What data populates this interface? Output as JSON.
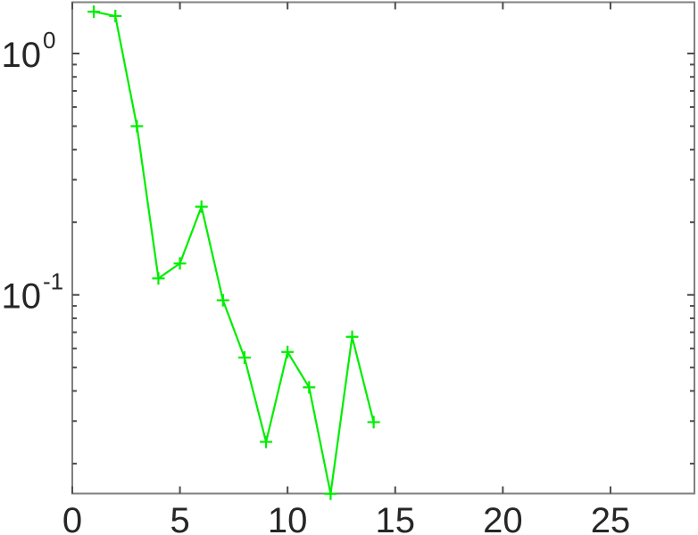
{
  "chart_data": {
    "type": "line",
    "title": "",
    "xlabel": "",
    "ylabel": "",
    "yscale": "log",
    "grid": false,
    "legend": null,
    "x": [
      1,
      2,
      3,
      4,
      5,
      6,
      7,
      8,
      9,
      10,
      11,
      12,
      13,
      14
    ],
    "y": [
      1.49,
      1.43,
      0.5,
      0.117,
      0.135,
      0.232,
      0.095,
      0.055,
      0.0246,
      0.058,
      0.0414,
      0.015,
      0.067,
      0.0297
    ],
    "line_color": "#00ee00",
    "marker": "+",
    "marker_size": 14,
    "xlim": [
      0,
      28.9
    ],
    "ylim": [
      0.01503,
      1.631
    ],
    "xticks": [
      0,
      5,
      10,
      15,
      20,
      25
    ],
    "xtick_labels": [
      "0",
      "5",
      "10",
      "15",
      "20",
      "25"
    ],
    "ytick_major": [
      1,
      0.1
    ],
    "ytick_labels": [
      {
        "base": "10",
        "exp": "0"
      },
      {
        "base": "10",
        "exp": "-1"
      }
    ],
    "ytick_minor": [
      0.9,
      0.8,
      0.7,
      0.6,
      0.5,
      0.4,
      0.3,
      0.2,
      0.09,
      0.08,
      0.07,
      0.06,
      0.05,
      0.04,
      0.03,
      0.02
    ],
    "box_color": "#808080",
    "tick_color": "#4d4d4d",
    "tick_label_color": "#262626",
    "background": "#ffffff"
  }
}
